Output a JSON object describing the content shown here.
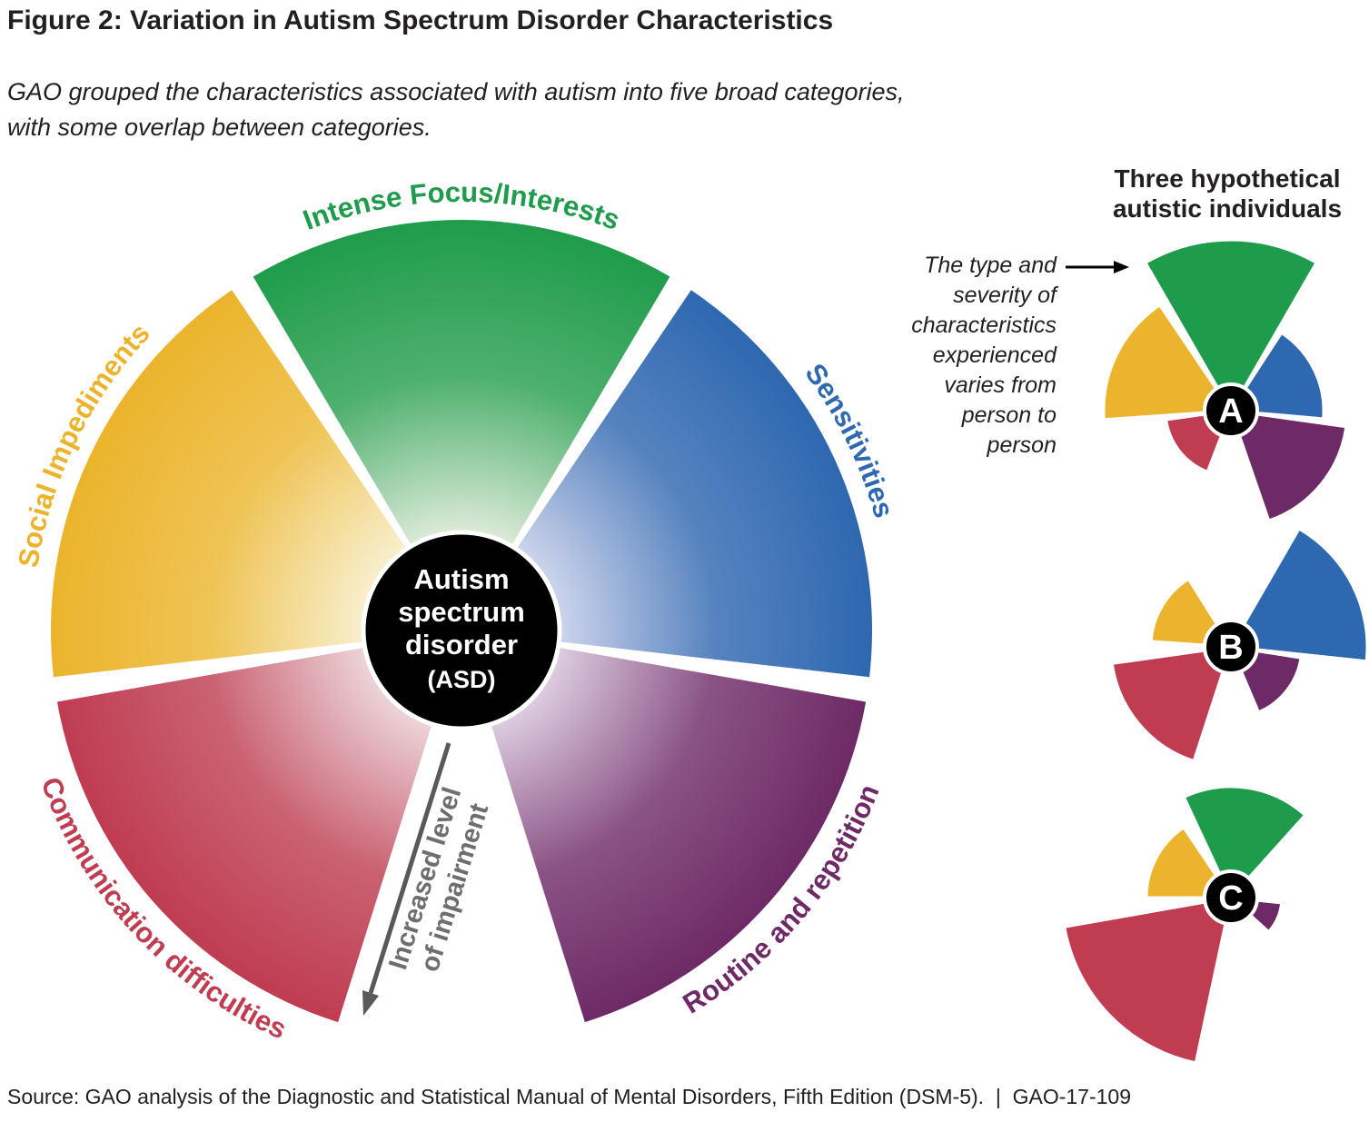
{
  "figure": {
    "title": "Figure 2: Variation in Autism Spectrum Disorder Characteristics",
    "subtitle": "GAO grouped the characteristics associated with autism into five broad categories,\nwith some overlap between categories.",
    "source": "Source: GAO analysis of the Diagnostic and Statistical Manual of Mental Disorders, Fifth Edition (DSM-5).  |  GAO-17-109"
  },
  "colors": {
    "green": "#1f9c4b",
    "green_light": "#dcead8",
    "yellow": "#ecb42c",
    "yellow_light": "#f8efcd",
    "blue": "#2e68b0",
    "blue_light": "#ccd4eb",
    "red": "#bf3c51",
    "red_light": "#ecd4d8",
    "purple": "#6e2a66",
    "purple_light": "#ddcce0",
    "arrow_gray": "#58595b",
    "label_gray": "#6d6e71",
    "text": "#231f20",
    "circle_black": "#000000"
  },
  "wheel": {
    "center_label": [
      "Autism",
      "spectrum",
      "disorder",
      "(ASD)"
    ],
    "arrow_label_line1": "Increased level",
    "arrow_label_line2": "of impairment",
    "categories": [
      {
        "label": "Intense Focus/Interests",
        "color": "green",
        "start": -30.5,
        "end": 30.5,
        "label_angle": 0
      },
      {
        "label": "Sensitivities",
        "color": "blue",
        "start": 34,
        "end": 96.5,
        "label_angle": 64
      },
      {
        "label": "Routine and repetition",
        "color": "purple",
        "start": 100,
        "end": 162.5,
        "label_angle": 130
      },
      {
        "label": "Communication difficulties",
        "color": "red",
        "start": -162.5,
        "end": -100,
        "label_angle": -133
      },
      {
        "label": "Social Impediments",
        "color": "yellow",
        "start": -96.5,
        "end": -34,
        "label_angle": -64
      }
    ]
  },
  "individuals": {
    "heading": "Three hypothetical\nautistic individuals",
    "note": "The type and\nseverity of\ncharacteristics\nexperienced\nvaries from\nperson to\nperson",
    "charts": [
      {
        "label": "A",
        "wedges": [
          {
            "color": "yellow",
            "start": -94,
            "end": -34,
            "r": 140
          },
          {
            "color": "blue",
            "start": 33,
            "end": 95,
            "r": 102
          },
          {
            "color": "green",
            "start": -30,
            "end": 30,
            "r": 188
          },
          {
            "color": "purple",
            "start": 98,
            "end": 161,
            "r": 128
          },
          {
            "color": "red",
            "start": -159,
            "end": -98,
            "r": 72
          }
        ]
      },
      {
        "label": "B",
        "wedges": [
          {
            "color": "yellow",
            "start": -86,
            "end": -32,
            "r": 88
          },
          {
            "color": "blue",
            "start": 30,
            "end": 96,
            "r": 150
          },
          {
            "color": "purple",
            "start": 99,
            "end": 157,
            "r": 78
          },
          {
            "color": "red",
            "start": -162,
            "end": -98,
            "r": 132
          }
        ]
      },
      {
        "label": "C",
        "wedges": [
          {
            "color": "yellow",
            "start": -90,
            "end": -34,
            "r": 93
          },
          {
            "color": "green",
            "start": -25,
            "end": 42,
            "r": 122
          },
          {
            "color": "purple",
            "start": 96,
            "end": 132,
            "r": 56
          },
          {
            "color": "red",
            "start": -168,
            "end": -100,
            "r": 186
          }
        ]
      }
    ]
  },
  "chart_data": {
    "type": "rose",
    "title": "Three hypothetical autistic individuals",
    "categories": [
      "Intense Focus/Interests",
      "Sensitivities",
      "Routine and repetition",
      "Communication difficulties",
      "Social Impediments"
    ],
    "series": [
      {
        "name": "A",
        "values": [
          188,
          102,
          128,
          72,
          140
        ]
      },
      {
        "name": "B",
        "values": [
          0,
          150,
          78,
          132,
          88
        ]
      },
      {
        "name": "C",
        "values": [
          122,
          0,
          56,
          186,
          93
        ]
      }
    ],
    "value_meaning": "wedge radius = severity of impairment (0 = category absent)",
    "annotation": "Increased level of impairment (outward from center)"
  }
}
